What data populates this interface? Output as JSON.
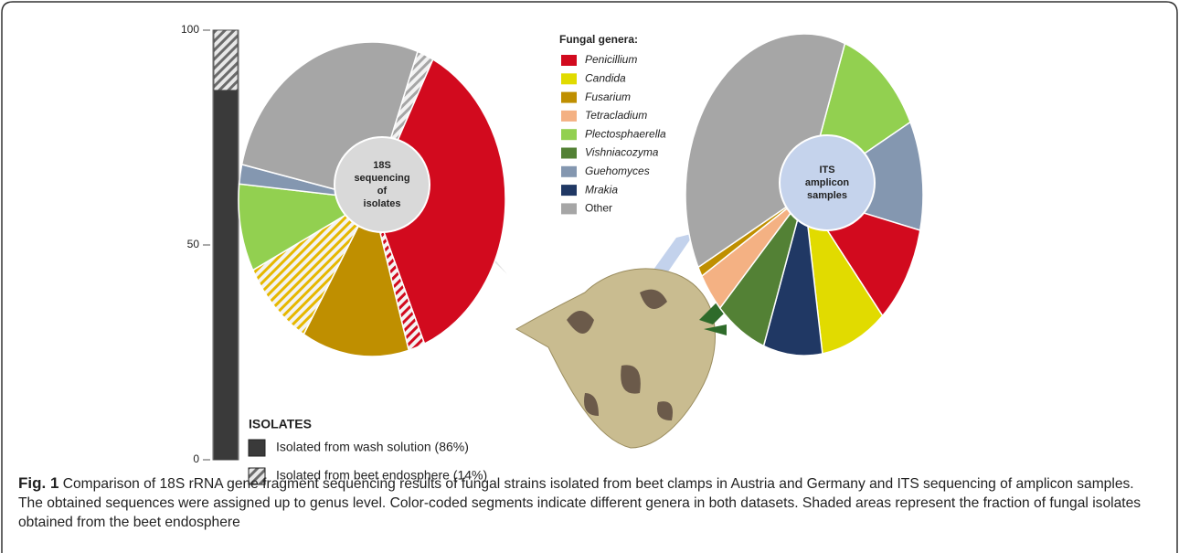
{
  "chart_data": [
    {
      "type": "stacked-bar",
      "series": [
        {
          "name": "Isolated from wash solution (86%)",
          "color": "#3a3a3a",
          "hatched": false,
          "values": [
            86
          ]
        },
        {
          "name": "Isolated from beet endosphere (14%)",
          "color": "#6b6b6b",
          "hatched": true,
          "values": [
            14
          ]
        }
      ],
      "legend_title": "ISOLATES",
      "ylim": [
        0,
        100
      ],
      "yticks": [
        0,
        50,
        100
      ]
    },
    {
      "type": "pie",
      "center_label": [
        "18S",
        "sequencing",
        "of",
        "isolates"
      ],
      "start_angle": 20,
      "values": [
        2,
        36,
        2,
        13,
        9,
        9,
        2,
        27
      ],
      "colors": [
        "#a6a6a6",
        "#d20a1e",
        "#d20a1e",
        "#bf8f00",
        "#e6b800",
        "#92d050",
        "#8497b0",
        "#a6a6a6"
      ],
      "hatched": [
        true,
        false,
        true,
        false,
        true,
        false,
        false,
        false
      ]
    },
    {
      "type": "pie",
      "center_label": [
        "ITS",
        "amplicon",
        "samples"
      ],
      "start_angle": 20,
      "values": [
        12,
        11,
        10,
        9,
        8,
        7,
        4,
        1,
        38
      ],
      "colors": [
        "#92d050",
        "#8497b0",
        "#d20a1e",
        "#e1db00",
        "#203864",
        "#538135",
        "#f4b183",
        "#bf8f00",
        "#a6a6a6"
      ],
      "hatched": [
        false,
        false,
        false,
        false,
        false,
        false,
        false,
        false,
        false
      ]
    }
  ],
  "legend": {
    "title": "Fungal genera:",
    "items": [
      {
        "name": "Penicillium",
        "color": "#d20a1e",
        "italic": true
      },
      {
        "name": "Candida",
        "color": "#e1db00",
        "italic": true
      },
      {
        "name": "Fusarium",
        "color": "#bf8f00",
        "italic": true
      },
      {
        "name": "Tetracladium",
        "color": "#f4b183",
        "italic": true
      },
      {
        "name": "Plectosphaerella",
        "color": "#92d050",
        "italic": true
      },
      {
        "name": "Vishniacozyma",
        "color": "#538135",
        "italic": true
      },
      {
        "name": "Guehomyces",
        "color": "#8497b0",
        "italic": true
      },
      {
        "name": "Mrakia",
        "color": "#203864",
        "italic": true
      },
      {
        "name": "Other",
        "color": "#a6a6a6",
        "italic": false
      }
    ]
  },
  "caption": {
    "label": "Fig. 1",
    "text": "Comparison of 18S rRNA gene fragment sequencing results of fungal strains isolated from beet clamps in Austria and Germany and ITS sequencing of amplicon samples. The obtained sequences were assigned up to genus level. Color-coded segments indicate different genera in both datasets. Shaded areas represent the fraction of fungal isolates obtained from the beet endosphere"
  }
}
